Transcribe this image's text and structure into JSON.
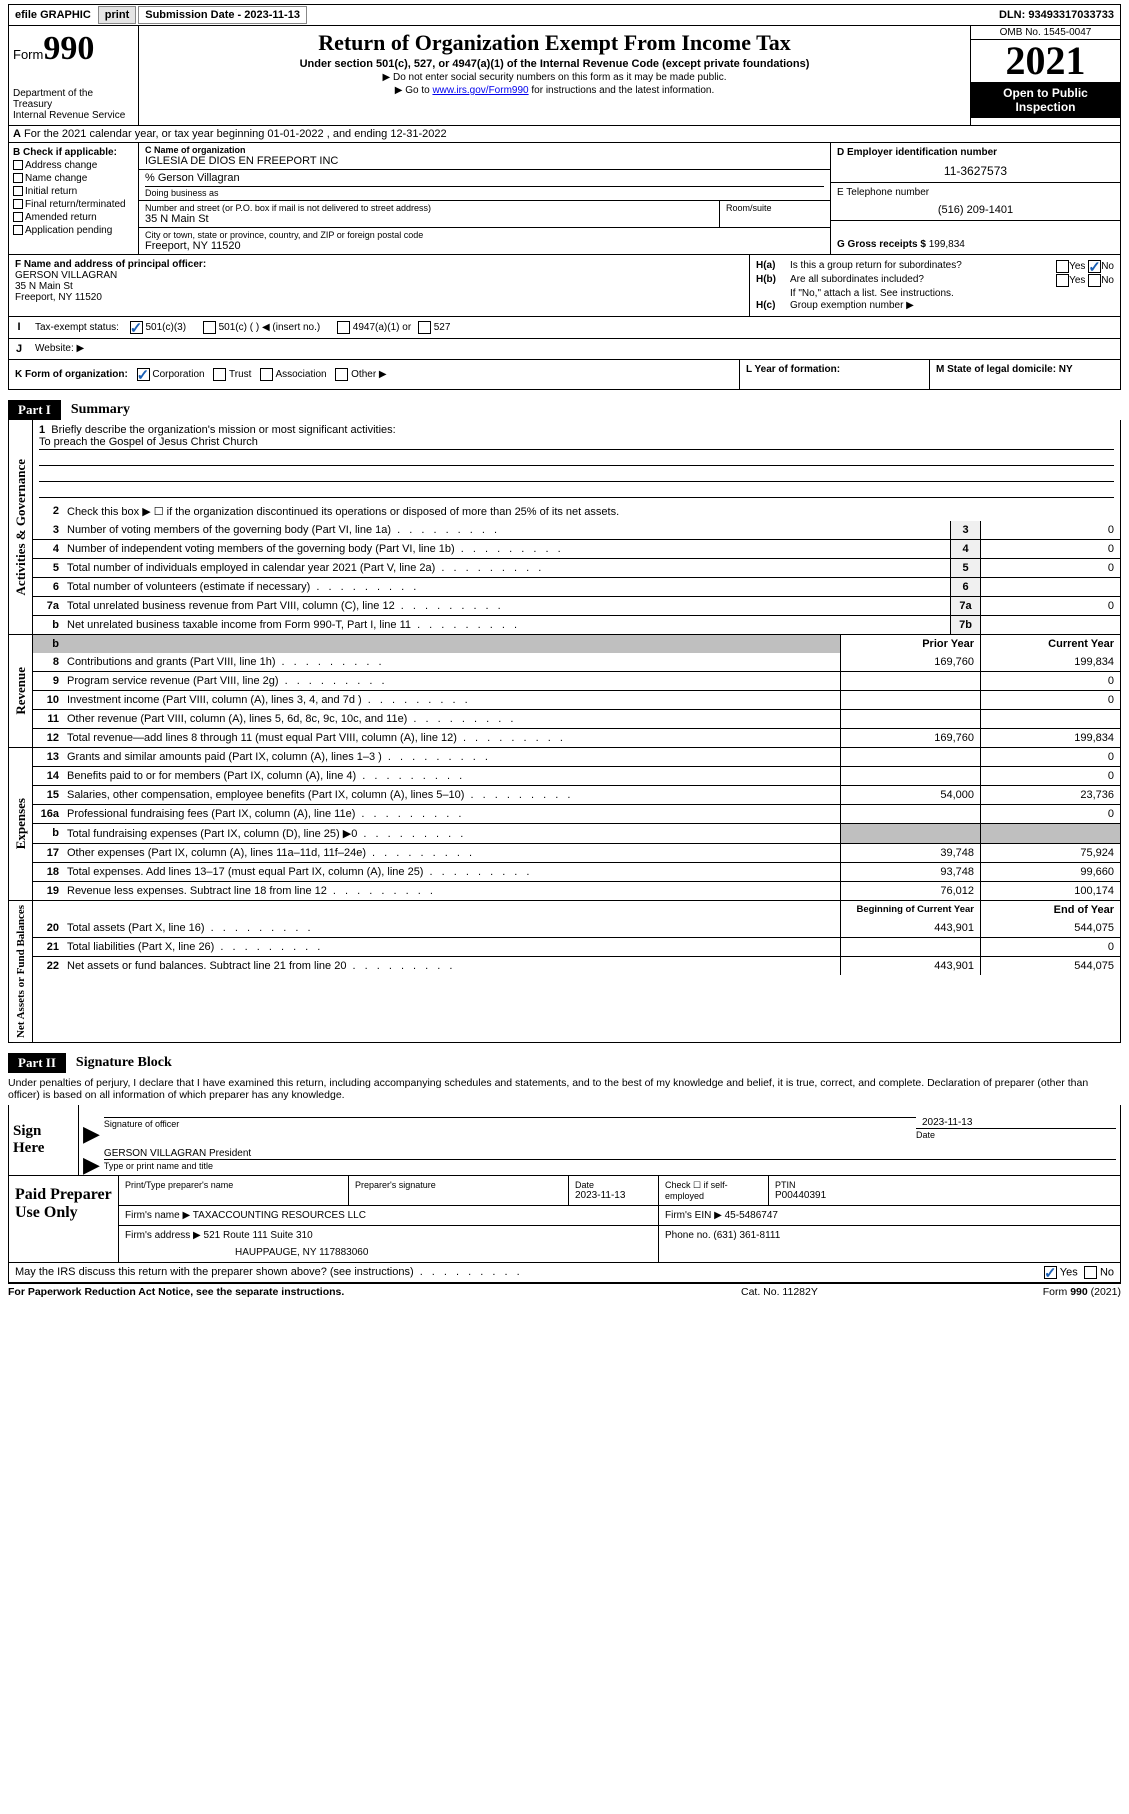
{
  "topbar": {
    "efile": "efile GRAPHIC",
    "print": "print",
    "subdate_label": "Submission Date - ",
    "subdate": "2023-11-13",
    "dln_label": "DLN: ",
    "dln": "93493317033733"
  },
  "header": {
    "form_prefix": "Form",
    "form_num": "990",
    "title": "Return of Organization Exempt From Income Tax",
    "subtitle": "Under section 501(c), 527, or 4947(a)(1) of the Internal Revenue Code (except private foundations)",
    "note1": "▶ Do not enter social security numbers on this form as it may be made public.",
    "note2_prefix": "▶ Go to ",
    "note2_link": "www.irs.gov/Form990",
    "note2_suffix": " for instructions and the latest information.",
    "omb": "OMB No. 1545-0047",
    "year": "2021",
    "openpub": "Open to Public Inspection",
    "dept": "Department of the Treasury\nInternal Revenue Service"
  },
  "row_a": "For the 2021 calendar year, or tax year beginning 01-01-2022  , and ending 12-31-2022",
  "col_b": {
    "title": "B Check if applicable:",
    "items": [
      "Address change",
      "Name change",
      "Initial return",
      "Final return/terminated",
      "Amended return",
      "Application pending"
    ]
  },
  "col_cd": {
    "c_name_label": "C Name of organization",
    "c_name": "IGLESIA DE DIOS EN FREEPORT INC",
    "care_of": "% Gerson Villagran",
    "dba_label": "Doing business as",
    "addr_label": "Number and street (or P.O. box if mail is not delivered to street address)",
    "addr": "35 N Main St",
    "room_label": "Room/suite",
    "city_label": "City or town, state or province, country, and ZIP or foreign postal code",
    "city": "Freeport, NY  11520"
  },
  "col_de": {
    "d_label": "D Employer identification number",
    "d_val": "11-3627573",
    "e_label": "E Telephone number",
    "e_val": "(516) 209-1401",
    "g_label": "G Gross receipts $ ",
    "g_val": "199,834"
  },
  "col_f": {
    "label": "F  Name and address of principal officer:",
    "name": "GERSON VILLAGRAN",
    "addr1": "35 N Main St",
    "addr2": "Freeport, NY  11520"
  },
  "col_h": {
    "ha_label": "H(a)",
    "ha_txt": "Is this a group return for subordinates?",
    "ha_yes": "Yes",
    "ha_no": "No",
    "hb_label": "H(b)",
    "hb_txt": "Are all subordinates included?",
    "hb_note": "If \"No,\" attach a list. See instructions.",
    "hc_label": "H(c)",
    "hc_txt": "Group exemption number ▶"
  },
  "row_i": {
    "label": "I",
    "txt": "Tax-exempt status:",
    "opt1": "501(c)(3)",
    "opt2": "501(c) (  ) ◀ (insert no.)",
    "opt3": "4947(a)(1) or",
    "opt4": "527"
  },
  "row_j": {
    "label": "J",
    "txt": "Website: ▶"
  },
  "row_klm": {
    "k": "K Form of organization:",
    "k1": "Corporation",
    "k2": "Trust",
    "k3": "Association",
    "k4": "Other ▶",
    "l": "L Year of formation:",
    "m": "M State of legal domicile: NY"
  },
  "part1": {
    "title_num": "Part I",
    "title_name": "Summary",
    "sections": {
      "gov": "Activities & Governance",
      "rev": "Revenue",
      "exp": "Expenses",
      "net": "Net Assets or Fund Balances"
    },
    "line1": "Briefly describe the organization's mission or most significant activities:",
    "line1_val": "To preach the Gospel of Jesus Christ Church",
    "line2": "Check this box ▶ ☐  if the organization discontinued its operations or disposed of more than 25% of its net assets.",
    "prior_year": "Prior Year",
    "current_year": "Current Year",
    "beg_year": "Beginning of Current Year",
    "end_year": "End of Year",
    "rows": [
      {
        "n": "3",
        "t": "Number of voting members of the governing body (Part VI, line 1a)",
        "box": "3",
        "v": "0"
      },
      {
        "n": "4",
        "t": "Number of independent voting members of the governing body (Part VI, line 1b)",
        "box": "4",
        "v": "0"
      },
      {
        "n": "5",
        "t": "Total number of individuals employed in calendar year 2021 (Part V, line 2a)",
        "box": "5",
        "v": "0"
      },
      {
        "n": "6",
        "t": "Total number of volunteers (estimate if necessary)",
        "box": "6",
        "v": ""
      },
      {
        "n": "7a",
        "t": "Total unrelated business revenue from Part VIII, column (C), line 12",
        "box": "7a",
        "v": "0"
      },
      {
        "n": "b",
        "t": "Net unrelated business taxable income from Form 990-T, Part I, line 11",
        "box": "7b",
        "v": ""
      }
    ],
    "rev_rows": [
      {
        "n": "8",
        "t": "Contributions and grants (Part VIII, line 1h)",
        "p": "169,760",
        "c": "199,834"
      },
      {
        "n": "9",
        "t": "Program service revenue (Part VIII, line 2g)",
        "p": "",
        "c": "0"
      },
      {
        "n": "10",
        "t": "Investment income (Part VIII, column (A), lines 3, 4, and 7d )",
        "p": "",
        "c": "0"
      },
      {
        "n": "11",
        "t": "Other revenue (Part VIII, column (A), lines 5, 6d, 8c, 9c, 10c, and 11e)",
        "p": "",
        "c": ""
      },
      {
        "n": "12",
        "t": "Total revenue—add lines 8 through 11 (must equal Part VIII, column (A), line 12)",
        "p": "169,760",
        "c": "199,834"
      }
    ],
    "exp_rows": [
      {
        "n": "13",
        "t": "Grants and similar amounts paid (Part IX, column (A), lines 1–3 )",
        "p": "",
        "c": "0"
      },
      {
        "n": "14",
        "t": "Benefits paid to or for members (Part IX, column (A), line 4)",
        "p": "",
        "c": "0"
      },
      {
        "n": "15",
        "t": "Salaries, other compensation, employee benefits (Part IX, column (A), lines 5–10)",
        "p": "54,000",
        "c": "23,736"
      },
      {
        "n": "16a",
        "t": "Professional fundraising fees (Part IX, column (A), line 11e)",
        "p": "",
        "c": "0"
      },
      {
        "n": "b",
        "t": "Total fundraising expenses (Part IX, column (D), line 25) ▶0",
        "p": "shade",
        "c": "shade"
      },
      {
        "n": "17",
        "t": "Other expenses (Part IX, column (A), lines 11a–11d, 11f–24e)",
        "p": "39,748",
        "c": "75,924"
      },
      {
        "n": "18",
        "t": "Total expenses. Add lines 13–17 (must equal Part IX, column (A), line 25)",
        "p": "93,748",
        "c": "99,660"
      },
      {
        "n": "19",
        "t": "Revenue less expenses. Subtract line 18 from line 12",
        "p": "76,012",
        "c": "100,174"
      }
    ],
    "net_rows": [
      {
        "n": "20",
        "t": "Total assets (Part X, line 16)",
        "p": "443,901",
        "c": "544,075"
      },
      {
        "n": "21",
        "t": "Total liabilities (Part X, line 26)",
        "p": "",
        "c": "0"
      },
      {
        "n": "22",
        "t": "Net assets or fund balances. Subtract line 21 from line 20",
        "p": "443,901",
        "c": "544,075"
      }
    ]
  },
  "part2": {
    "title_num": "Part II",
    "title_name": "Signature Block",
    "penalty": "Under penalties of perjury, I declare that I have examined this return, including accompanying schedules and statements, and to the best of my knowledge and belief, it is true, correct, and complete. Declaration of preparer (other than officer) is based on all information of which preparer has any knowledge.",
    "sign_here": "Sign Here",
    "sig_officer": "Signature of officer",
    "sig_date": "Date",
    "sig_date_val": "2023-11-13",
    "officer_name": "GERSON VILLAGRAN  President",
    "type_name": "Type or print name and title",
    "paid_prep": "Paid Preparer Use Only",
    "prep_name_lbl": "Print/Type preparer's name",
    "prep_sig_lbl": "Preparer's signature",
    "prep_date": "2023-11-13",
    "prep_check": "Check ☐ if self-employed",
    "ptin_lbl": "PTIN",
    "ptin": "P00440391",
    "firm_name_lbl": "Firm's name  ▶",
    "firm_name": "TAXACCOUNTING RESOURCES LLC",
    "firm_ein_lbl": "Firm's EIN ▶",
    "firm_ein": "45-5486747",
    "firm_addr_lbl": "Firm's address ▶",
    "firm_addr": "521 Route 111 Suite 310",
    "firm_addr2": "HAUPPAUGE, NY  117883060",
    "phone_lbl": "Phone no. ",
    "phone": "(631) 361-8111"
  },
  "may_irs": {
    "txt": "May the IRS discuss this return with the preparer shown above? (see instructions)",
    "yes": "Yes",
    "no": "No"
  },
  "footer": {
    "left": "For Paperwork Reduction Act Notice, see the separate instructions.",
    "mid": "Cat. No. 11282Y",
    "right_prefix": "Form ",
    "right_form": "990",
    "right_suffix": " (2021)"
  }
}
